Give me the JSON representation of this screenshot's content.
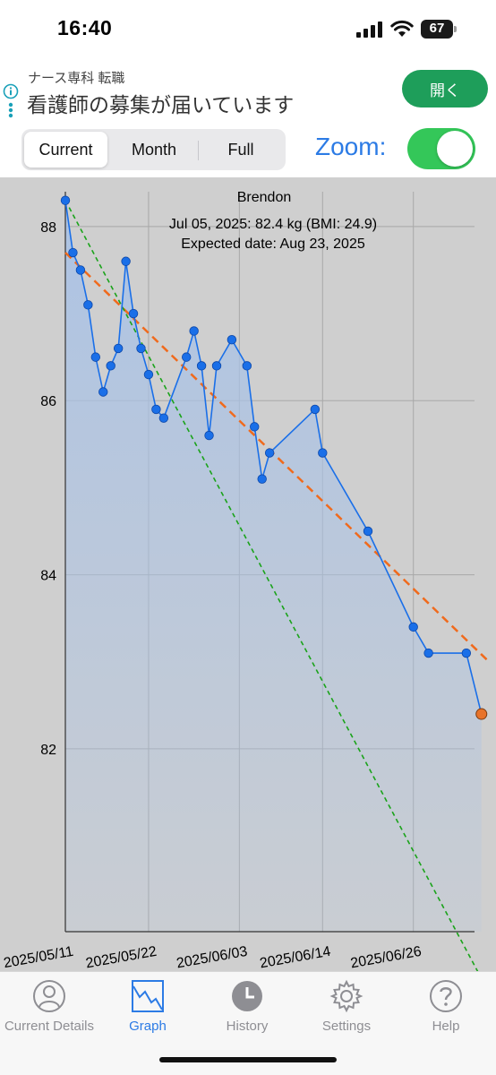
{
  "status_bar": {
    "time": "16:40",
    "battery": "67"
  },
  "ad": {
    "subtitle": "ナース専科 転職",
    "title": "看護師の募集が届いています",
    "button_label": "開く"
  },
  "toolbar": {
    "segments": [
      {
        "label": "Current",
        "selected": true
      },
      {
        "label": "Month",
        "selected": false
      },
      {
        "label": "Full",
        "selected": false
      }
    ],
    "zoom_label": "Zoom:",
    "zoom_on": true
  },
  "chart_data": {
    "type": "line",
    "title": "Brendon",
    "annotation_line1": "Jul 05, 2025: 82.4 kg (BMI: 24.9)",
    "annotation_line2": "Expected date: Aug 23, 2025",
    "xlabel": "",
    "ylabel": "",
    "x_ticks": [
      "2025/05/11",
      "2025/05/22",
      "2025/06/03",
      "2025/06/14",
      "2025/06/26"
    ],
    "y_ticks": [
      82,
      84,
      86,
      88
    ],
    "ylim": [
      79.9,
      88.4
    ],
    "grid": true,
    "series": [
      {
        "points": [
          {
            "x": "2025-05-11",
            "y": 88.3
          },
          {
            "x": "2025-05-12",
            "y": 87.7
          },
          {
            "x": "2025-05-13",
            "y": 87.5
          },
          {
            "x": "2025-05-14",
            "y": 87.1
          },
          {
            "x": "2025-05-15",
            "y": 86.5
          },
          {
            "x": "2025-05-16",
            "y": 86.1
          },
          {
            "x": "2025-05-17",
            "y": 86.4
          },
          {
            "x": "2025-05-18",
            "y": 86.6
          },
          {
            "x": "2025-05-19",
            "y": 87.6
          },
          {
            "x": "2025-05-20",
            "y": 87.0
          },
          {
            "x": "2025-05-21",
            "y": 86.6
          },
          {
            "x": "2025-05-22",
            "y": 86.3
          },
          {
            "x": "2025-05-23",
            "y": 85.9
          },
          {
            "x": "2025-05-24",
            "y": 85.8
          },
          {
            "x": "2025-05-27",
            "y": 86.5
          },
          {
            "x": "2025-05-28",
            "y": 86.8
          },
          {
            "x": "2025-05-29",
            "y": 86.4
          },
          {
            "x": "2025-05-30",
            "y": 85.6
          },
          {
            "x": "2025-05-31",
            "y": 86.4
          },
          {
            "x": "2025-06-02",
            "y": 86.7
          },
          {
            "x": "2025-06-04",
            "y": 86.4
          },
          {
            "x": "2025-06-05",
            "y": 85.7
          },
          {
            "x": "2025-06-06",
            "y": 85.1
          },
          {
            "x": "2025-06-07",
            "y": 85.4
          },
          {
            "x": "2025-06-13",
            "y": 85.9
          },
          {
            "x": "2025-06-14",
            "y": 85.4
          },
          {
            "x": "2025-06-20",
            "y": 84.5
          },
          {
            "x": "2025-06-26",
            "y": 83.4
          },
          {
            "x": "2025-06-28",
            "y": 83.1
          },
          {
            "x": "2025-07-03",
            "y": 83.1
          },
          {
            "x": "2025-07-05",
            "y": 82.4
          }
        ],
        "color": "#1a6fe8",
        "fill": "#a9c2e6"
      }
    ],
    "trend_lines": [
      {
        "start": {
          "x": "2025-05-11",
          "y": 87.7
        },
        "end": {
          "x": "2025-07-06",
          "y": 83.0
        },
        "color": "#f06a1c",
        "style": "dashed"
      },
      {
        "start": {
          "x": "2025-05-11",
          "y": 88.3
        },
        "end": {
          "x": "2025-07-06",
          "y": 79.2
        },
        "color": "#1aa31a",
        "style": "dotted"
      }
    ],
    "highlight_point": {
      "x": "2025-07-05",
      "y": 82.4,
      "color": "#e8732a"
    }
  },
  "tabs": [
    {
      "label": "Current Details",
      "icon": "person-circle-icon",
      "active": false
    },
    {
      "label": "Graph",
      "icon": "graph-icon",
      "active": true
    },
    {
      "label": "History",
      "icon": "clock-icon",
      "active": false
    },
    {
      "label": "Settings",
      "icon": "gear-icon",
      "active": false
    },
    {
      "label": "Help",
      "icon": "question-circle-icon",
      "active": false
    }
  ]
}
